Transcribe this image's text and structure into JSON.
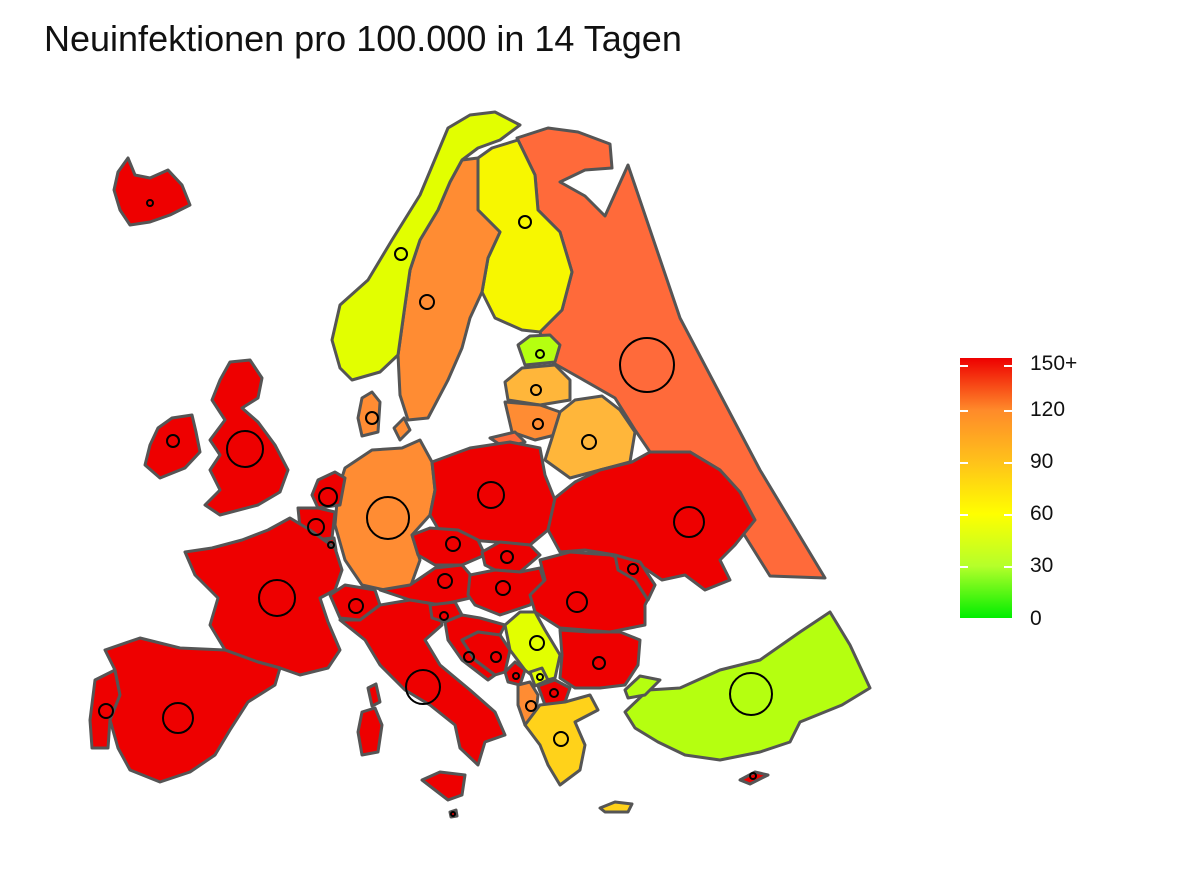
{
  "title": "Neuinfektionen pro 100.000 in 14 Tagen",
  "legend": {
    "labels": [
      "150+",
      "120",
      "90",
      "60",
      "30",
      "0"
    ],
    "colors": {
      "max": "#ee0000",
      "high": "#ff8a2a",
      "mid": "#ffc21a",
      "low_mid": "#ffff00",
      "low": "#b5ff2a",
      "zero": "#00ee00"
    }
  },
  "map": {
    "border_color": "#555555",
    "fill_colors": {
      "red": "#ee0000",
      "orange_red": "#ff6a3a",
      "orange": "#ff8c33",
      "amber": "#ffb63a",
      "gold": "#ffd21a",
      "yellow": "#f7f700",
      "yellow_green": "#e2ff00",
      "lime": "#b5ff10"
    }
  }
}
